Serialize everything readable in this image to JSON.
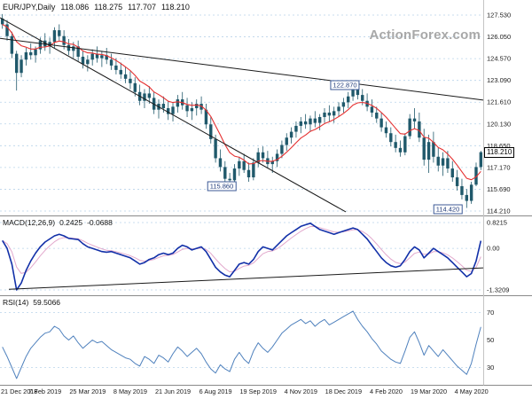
{
  "header": {
    "symbol": "EUR/JPY,Daily",
    "open": "118.086",
    "high": "118.275",
    "low": "117.707",
    "close": "118.210"
  },
  "watermark": "ActionForex.com",
  "colors": {
    "candle": "#20596b",
    "ma": "#e53030",
    "macd": "#1230a8",
    "macd_signal": "#e2a8cc",
    "rsi": "#4f81bd",
    "grid": "#b9d4ea",
    "trendline": "#1a1a1a",
    "separator": "#8a8a8a",
    "axis_text": "#1a1a1a"
  },
  "chart_data": {
    "type": "candlestick",
    "title": "EUR/JPY Daily with MACD and RSI",
    "x_labels": [
      {
        "label": "21 Dec 2018",
        "i": 0
      },
      {
        "label": "7 Feb 2019",
        "i": 9
      },
      {
        "label": "25 Mar 2019",
        "i": 18
      },
      {
        "label": "8 May 2019",
        "i": 27
      },
      {
        "label": "21 Jun 2019",
        "i": 36
      },
      {
        "label": "6 Aug 2019",
        "i": 45
      },
      {
        "label": "19 Sep 2019",
        "i": 54
      },
      {
        "label": "4 Nov 2019",
        "i": 63
      },
      {
        "label": "18 Dec 2019",
        "i": 72
      },
      {
        "label": "4 Feb 2020",
        "i": 81
      },
      {
        "label": "19 Mar 2020",
        "i": 90
      },
      {
        "label": "4 May 2020",
        "i": 99
      }
    ],
    "price_panel": {
      "y_ticks": [
        "127.530",
        "126.050",
        "124.570",
        "123.090",
        "121.610",
        "120.130",
        "118.650",
        "117.170",
        "115.690",
        "114.210"
      ],
      "current_price_label": "118.210",
      "annotations": [
        {
          "text": "122.870",
          "x": 389,
          "y": 96
        },
        {
          "text": "115.860",
          "x": 250,
          "y": 210
        },
        {
          "text": "114.420",
          "x": 505,
          "y": 236
        }
      ],
      "trendlines": [
        {
          "x1": 0,
          "p1": 125.95,
          "x2": 545,
          "p2": 121.75
        },
        {
          "x1": 0,
          "p1": 127.35,
          "x2": 390,
          "p2": 114.15
        }
      ],
      "candles": [
        [
          127.3,
          127.6,
          126.6,
          126.9
        ],
        [
          126.9,
          127.2,
          125.8,
          126.1
        ],
        [
          126.1,
          126.4,
          124.6,
          124.9
        ],
        [
          124.9,
          125.1,
          122.4,
          123.6
        ],
        [
          123.6,
          124.8,
          123.3,
          124.5
        ],
        [
          124.5,
          125.3,
          124.1,
          125.0
        ],
        [
          125.0,
          125.6,
          124.5,
          124.8
        ],
        [
          124.8,
          125.4,
          124.3,
          125.2
        ],
        [
          125.2,
          126.0,
          124.9,
          125.8
        ],
        [
          125.8,
          126.3,
          125.1,
          125.4
        ],
        [
          125.4,
          126.0,
          124.9,
          125.7
        ],
        [
          125.7,
          126.7,
          125.3,
          126.5
        ],
        [
          126.5,
          126.9,
          125.8,
          126.1
        ],
        [
          126.1,
          126.5,
          125.2,
          125.5
        ],
        [
          125.5,
          125.9,
          124.8,
          125.1
        ],
        [
          125.1,
          125.7,
          124.6,
          125.4
        ],
        [
          125.4,
          125.8,
          124.4,
          124.7
        ],
        [
          124.7,
          125.1,
          123.9,
          124.2
        ],
        [
          124.2,
          124.8,
          123.7,
          124.5
        ],
        [
          124.5,
          125.2,
          124.1,
          124.9
        ],
        [
          124.9,
          125.4,
          124.3,
          124.6
        ],
        [
          124.6,
          125.1,
          124.0,
          124.8
        ],
        [
          124.8,
          125.3,
          124.2,
          124.5
        ],
        [
          124.5,
          124.9,
          123.8,
          124.1
        ],
        [
          124.1,
          124.6,
          123.5,
          123.8
        ],
        [
          123.8,
          124.3,
          123.2,
          123.5
        ],
        [
          123.5,
          124.0,
          122.9,
          123.2
        ],
        [
          123.2,
          123.7,
          122.5,
          122.9
        ],
        [
          122.9,
          123.3,
          122.0,
          122.3
        ],
        [
          122.3,
          122.8,
          121.4,
          121.7
        ],
        [
          121.7,
          122.5,
          121.2,
          122.2
        ],
        [
          122.2,
          122.7,
          121.5,
          121.9
        ],
        [
          121.9,
          122.3,
          120.8,
          121.1
        ],
        [
          121.1,
          121.8,
          120.5,
          121.5
        ],
        [
          121.5,
          122.0,
          120.9,
          121.2
        ],
        [
          121.2,
          121.7,
          120.4,
          120.8
        ],
        [
          120.8,
          121.6,
          120.3,
          121.3
        ],
        [
          121.3,
          122.1,
          120.9,
          121.8
        ],
        [
          121.8,
          122.3,
          121.1,
          121.4
        ],
        [
          121.4,
          121.9,
          120.6,
          121.0
        ],
        [
          121.0,
          121.6,
          120.4,
          121.2
        ],
        [
          121.2,
          121.8,
          120.7,
          121.5
        ],
        [
          121.5,
          122.0,
          120.8,
          121.1
        ],
        [
          121.1,
          121.5,
          119.8,
          120.1
        ],
        [
          120.1,
          120.6,
          118.8,
          119.1
        ],
        [
          119.1,
          119.4,
          117.5,
          117.8
        ],
        [
          117.8,
          118.4,
          116.9,
          117.2
        ],
        [
          117.2,
          117.6,
          116.1,
          116.4
        ],
        [
          116.4,
          116.8,
          115.86,
          116.3
        ],
        [
          116.3,
          117.4,
          116.0,
          117.1
        ],
        [
          117.1,
          117.9,
          116.6,
          117.6
        ],
        [
          117.6,
          118.1,
          116.8,
          117.0
        ],
        [
          117.0,
          117.5,
          116.2,
          116.5
        ],
        [
          116.5,
          117.8,
          116.3,
          117.5
        ],
        [
          117.5,
          118.5,
          117.2,
          118.2
        ],
        [
          118.2,
          118.6,
          117.5,
          117.8
        ],
        [
          117.8,
          118.3,
          117.1,
          117.4
        ],
        [
          117.4,
          117.9,
          116.8,
          117.6
        ],
        [
          117.6,
          118.4,
          117.2,
          118.1
        ],
        [
          118.1,
          119.0,
          117.8,
          118.7
        ],
        [
          118.7,
          119.5,
          118.3,
          119.2
        ],
        [
          119.2,
          119.9,
          118.8,
          119.6
        ],
        [
          119.6,
          120.3,
          119.2,
          120.0
        ],
        [
          120.0,
          120.6,
          119.5,
          120.3
        ],
        [
          120.3,
          120.8,
          119.8,
          120.1
        ],
        [
          120.1,
          120.7,
          119.6,
          120.5
        ],
        [
          120.5,
          121.0,
          119.9,
          120.2
        ],
        [
          120.2,
          120.8,
          119.7,
          120.6
        ],
        [
          120.6,
          121.2,
          120.2,
          120.9
        ],
        [
          120.9,
          121.4,
          120.3,
          120.7
        ],
        [
          120.7,
          121.3,
          120.2,
          121.0
        ],
        [
          121.0,
          121.6,
          120.6,
          121.3
        ],
        [
          121.3,
          121.9,
          120.9,
          121.6
        ],
        [
          121.6,
          122.3,
          121.2,
          122.0
        ],
        [
          122.0,
          122.87,
          121.7,
          122.5
        ],
        [
          122.5,
          122.7,
          121.8,
          122.1
        ],
        [
          122.1,
          122.5,
          121.4,
          121.7
        ],
        [
          121.7,
          122.2,
          121.0,
          121.3
        ],
        [
          121.3,
          121.8,
          120.6,
          120.9
        ],
        [
          120.9,
          121.3,
          120.2,
          120.5
        ],
        [
          120.5,
          120.9,
          119.6,
          119.9
        ],
        [
          119.9,
          120.3,
          119.2,
          119.5
        ],
        [
          119.5,
          119.9,
          118.6,
          118.9
        ],
        [
          118.9,
          119.4,
          118.2,
          118.5
        ],
        [
          118.5,
          119.0,
          117.9,
          118.2
        ],
        [
          118.2,
          119.5,
          118.0,
          119.3
        ],
        [
          119.3,
          120.8,
          119.1,
          120.5
        ],
        [
          120.5,
          121.2,
          119.8,
          120.3
        ],
        [
          120.3,
          120.9,
          118.9,
          119.2
        ],
        [
          119.2,
          119.8,
          117.3,
          117.7
        ],
        [
          117.7,
          119.4,
          116.8,
          118.9
        ],
        [
          118.9,
          119.6,
          117.5,
          117.9
        ],
        [
          117.9,
          118.5,
          116.9,
          117.3
        ],
        [
          117.3,
          118.2,
          116.6,
          117.8
        ],
        [
          117.8,
          118.3,
          116.8,
          117.1
        ],
        [
          117.1,
          117.6,
          116.2,
          116.5
        ],
        [
          116.5,
          117.0,
          115.6,
          115.9
        ],
        [
          115.9,
          116.4,
          115.0,
          115.3
        ],
        [
          115.3,
          115.7,
          114.42,
          114.9
        ],
        [
          114.9,
          116.2,
          114.7,
          116.0
        ],
        [
          116.0,
          117.5,
          115.9,
          117.2
        ],
        [
          117.2,
          118.3,
          117.0,
          118.21
        ]
      ]
    },
    "macd_panel": {
      "label": "MACD(12,26,9)",
      "value1": "0.2425",
      "value2": "-0.0688",
      "y_ticks": [
        "0.8215",
        "0.00",
        "-1.3209"
      ],
      "trendline": {
        "x1": 10,
        "v1": -1.3,
        "x2": 545,
        "v2": -0.62
      },
      "series": [
        0.25,
        0,
        -0.5,
        -1.32,
        -1.1,
        -0.7,
        -0.4,
        -0.15,
        0.05,
        0.2,
        0.3,
        0.4,
        0.45,
        0.4,
        0.32,
        0.3,
        0.28,
        0.15,
        0.05,
        0,
        -0.05,
        -0.1,
        -0.12,
        -0.1,
        -0.15,
        -0.2,
        -0.25,
        -0.3,
        -0.4,
        -0.5,
        -0.45,
        -0.35,
        -0.3,
        -0.2,
        -0.15,
        -0.2,
        -0.15,
        0,
        0.1,
        0.05,
        -0.05,
        0,
        0.05,
        -0.1,
        -0.35,
        -0.6,
        -0.75,
        -0.85,
        -0.9,
        -0.7,
        -0.5,
        -0.45,
        -0.5,
        -0.35,
        -0.1,
        0.05,
        0,
        -0.05,
        0.1,
        0.25,
        0.4,
        0.5,
        0.6,
        0.7,
        0.75,
        0.8,
        0.7,
        0.6,
        0.55,
        0.5,
        0.45,
        0.5,
        0.55,
        0.6,
        0.65,
        0.6,
        0.45,
        0.3,
        0.1,
        -0.1,
        -0.3,
        -0.45,
        -0.55,
        -0.6,
        -0.55,
        -0.35,
        -0.1,
        0.05,
        -0.05,
        -0.3,
        -0.15,
        0,
        -0.1,
        -0.2,
        -0.3,
        -0.45,
        -0.6,
        -0.75,
        -0.9,
        -0.8,
        -0.4,
        0.24
      ]
    },
    "rsi_panel": {
      "label": "RSI(14)",
      "value": "59.5066",
      "y_ticks": [
        70,
        50,
        30
      ],
      "guides": [
        70,
        30
      ],
      "series": [
        45,
        38,
        30,
        22,
        30,
        38,
        44,
        48,
        52,
        55,
        56,
        60,
        58,
        53,
        50,
        53,
        48,
        44,
        47,
        50,
        48,
        49,
        46,
        43,
        41,
        39,
        37,
        36,
        33,
        31,
        38,
        36,
        33,
        39,
        37,
        34,
        40,
        45,
        42,
        38,
        41,
        44,
        40,
        34,
        29,
        26,
        32,
        29,
        27,
        36,
        41,
        36,
        33,
        42,
        48,
        44,
        41,
        45,
        50,
        55,
        58,
        61,
        63,
        65,
        62,
        64,
        60,
        63,
        65,
        61,
        63,
        65,
        67,
        69,
        71,
        65,
        60,
        56,
        51,
        47,
        42,
        39,
        36,
        34,
        33,
        42,
        52,
        56,
        48,
        39,
        46,
        42,
        38,
        43,
        39,
        35,
        31,
        28,
        25,
        33,
        47,
        59.5
      ]
    }
  }
}
